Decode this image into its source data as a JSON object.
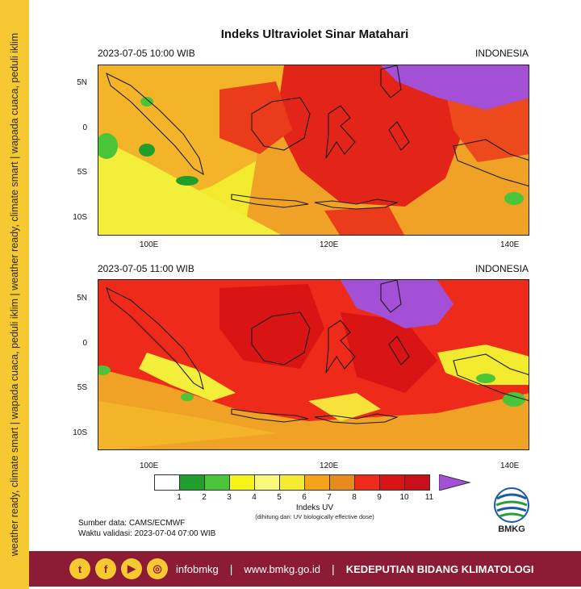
{
  "side_banner": "weather ready, climate smart  |  wapada cuaca, peduli iklim  |  weather ready, climate smart  |  wapada cuaca, peduli iklim",
  "title": "Indeks Ultraviolet Sinar Matahari",
  "panels": [
    {
      "datetime": "2023-07-05  10:00 WIB",
      "region": "INDONESIA"
    },
    {
      "datetime": "2023-07-05  11:00 WIB",
      "region": "INDONESIA"
    }
  ],
  "lat_ticks": [
    "5N",
    "0",
    "5S",
    "10S"
  ],
  "lon_ticks": [
    "100E",
    "120E",
    "140E"
  ],
  "colorbar": {
    "colors": [
      "#ffffff",
      "#1f9e2c",
      "#4cc43a",
      "#f4f418",
      "#f8f77e",
      "#f6eb33",
      "#f6a21a",
      "#e88a1c",
      "#ee2a1a",
      "#d91414",
      "#c80f1a"
    ],
    "arrow_color": "#a34fd6",
    "labels": [
      "1",
      "2",
      "3",
      "4",
      "5",
      "6",
      "7",
      "8",
      "9",
      "10",
      "11"
    ],
    "title": "Indeks UV",
    "subtitle": "(dihitung dari: UV biologically effective dose)"
  },
  "source": "Sumber data: CAMS/ECMWF",
  "validity": "Waktu validasi: 2023-07-04 07:00 WIB",
  "logo_text": "BMKG",
  "footer": {
    "social_icons": [
      "twitter-icon",
      "facebook-icon",
      "youtube-icon",
      "instagram-icon"
    ],
    "handle": "infobmkg",
    "website": "www.bmkg.go.id",
    "department": "KEDEPUTIAN BIDANG KLIMATOLOGI",
    "separator": "|"
  }
}
